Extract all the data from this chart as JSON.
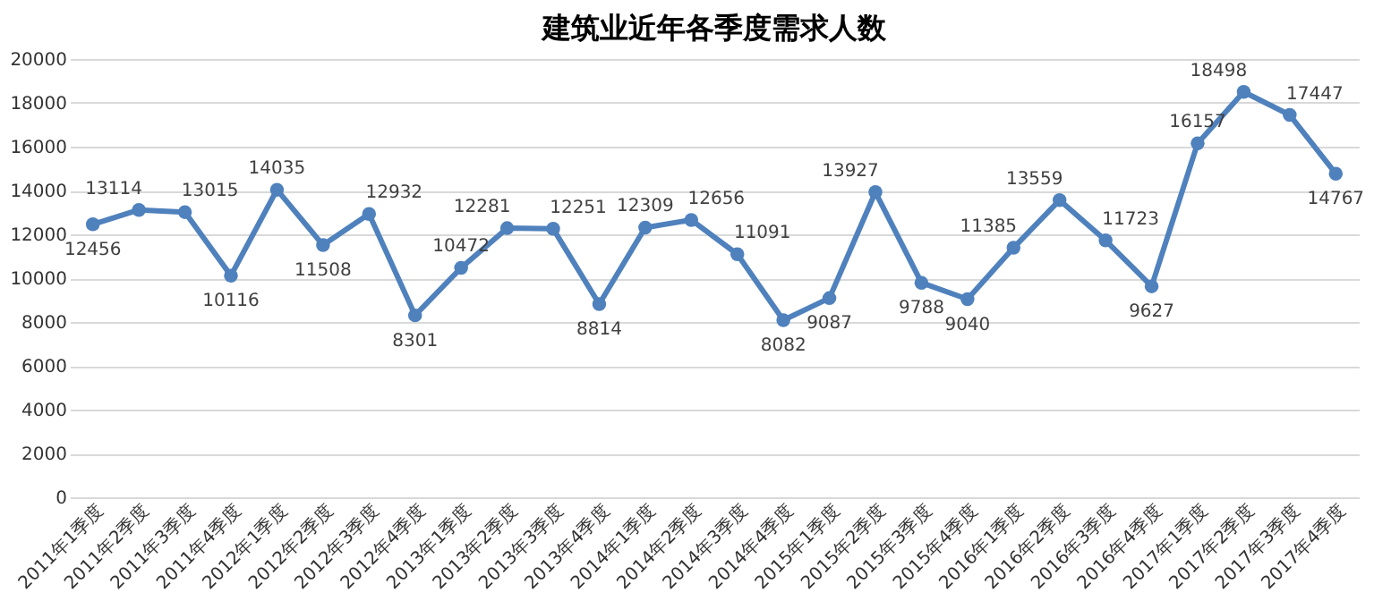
{
  "chart_data": {
    "type": "line",
    "title": "建筑业近年各季度需求人数",
    "categories": [
      "2011年1季度",
      "2011年2季度",
      "2011年3季度",
      "2011年4季度",
      "2012年1季度",
      "2012年2季度",
      "2012年3季度",
      "2012年4季度",
      "2013年1季度",
      "2013年2季度",
      "2013年3季度",
      "2013年4季度",
      "2014年1季度",
      "2014年2季度",
      "2014年3季度",
      "2014年4季度",
      "2015年1季度",
      "2015年2季度",
      "2015年3季度",
      "2015年4季度",
      "2016年1季度",
      "2016年2季度",
      "2016年3季度",
      "2016年4季度",
      "2017年1季度",
      "2017年2季度",
      "2017年3季度",
      "2017年4季度"
    ],
    "series": [
      {
        "color": "#4f81bd",
        "values": [
          12456,
          13114,
          13015,
          10116,
          14035,
          11508,
          12932,
          8301,
          10472,
          12281,
          12251,
          8814,
          12309,
          12656,
          11091,
          8082,
          9087,
          13927,
          9788,
          9040,
          11385,
          13559,
          11723,
          9627,
          16157,
          18498,
          17447,
          14767
        ]
      }
    ],
    "ylim": [
      0,
      20000
    ],
    "yticks": [
      0,
      2000,
      4000,
      6000,
      8000,
      10000,
      12000,
      14000,
      16000,
      18000,
      20000
    ],
    "grid": "y",
    "marker": "circle",
    "line_style": "solid",
    "data_labels": true
  }
}
